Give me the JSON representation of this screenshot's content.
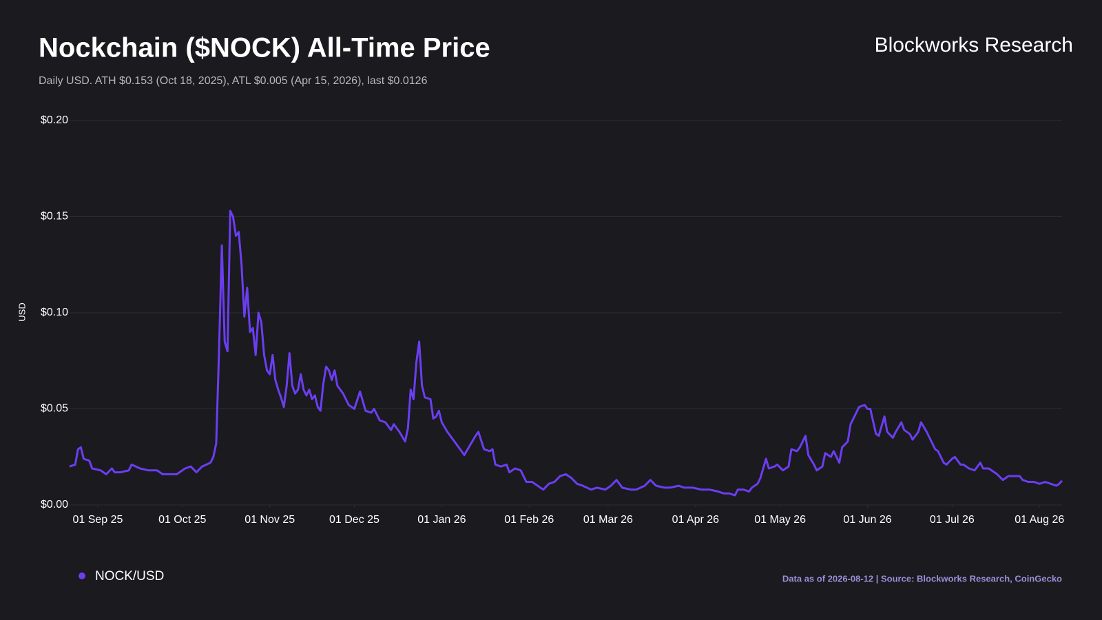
{
  "chart_data": {
    "type": "line",
    "title": "Nockchain ($NOCK) All-Time Price",
    "subtitle": "Daily USD. ATH $0.153 (Oct 18, 2025), ATL $0.005 (Apr 15, 2026), last $0.0126",
    "brand": "Blockworks Research",
    "y_label": "USD",
    "footer": "Data as of 2026-08-12 | Source: Blockworks Research, CoinGecko",
    "x": [
      "2025-08-22",
      "2025-08-24",
      "2025-08-25",
      "2025-08-26",
      "2025-08-27",
      "2025-08-29",
      "2025-08-30",
      "2025-09-02",
      "2025-09-04",
      "2025-09-06",
      "2025-09-07",
      "2025-09-09",
      "2025-09-12",
      "2025-09-13",
      "2025-09-16",
      "2025-09-19",
      "2025-09-22",
      "2025-09-24",
      "2025-09-27",
      "2025-09-29",
      "2025-10-02",
      "2025-10-04",
      "2025-10-06",
      "2025-10-08",
      "2025-10-11",
      "2025-10-12",
      "2025-10-13",
      "2025-10-14",
      "2025-10-15",
      "2025-10-16",
      "2025-10-17",
      "2025-10-18",
      "2025-10-19",
      "2025-10-20",
      "2025-10-21",
      "2025-10-22",
      "2025-10-23",
      "2025-10-24",
      "2025-10-25",
      "2025-10-26",
      "2025-10-27",
      "2025-10-28",
      "2025-10-29",
      "2025-10-30",
      "2025-10-31",
      "2025-11-01",
      "2025-11-02",
      "2025-11-03",
      "2025-11-04",
      "2025-11-05",
      "2025-11-06",
      "2025-11-07",
      "2025-11-08",
      "2025-11-09",
      "2025-11-10",
      "2025-11-11",
      "2025-11-12",
      "2025-11-13",
      "2025-11-14",
      "2025-11-15",
      "2025-11-16",
      "2025-11-17",
      "2025-11-18",
      "2025-11-19",
      "2025-11-20",
      "2025-11-21",
      "2025-11-22",
      "2025-11-23",
      "2025-11-24",
      "2025-11-25",
      "2025-11-27",
      "2025-11-29",
      "2025-12-01",
      "2025-12-03",
      "2025-12-05",
      "2025-12-07",
      "2025-12-08",
      "2025-12-10",
      "2025-12-12",
      "2025-12-14",
      "2025-12-15",
      "2025-12-17",
      "2025-12-19",
      "2025-12-20",
      "2025-12-21",
      "2025-12-22",
      "2025-12-23",
      "2025-12-24",
      "2025-12-25",
      "2025-12-26",
      "2025-12-28",
      "2025-12-29",
      "2025-12-30",
      "2025-12-31",
      "2026-01-01",
      "2026-01-03",
      "2026-01-05",
      "2026-01-07",
      "2026-01-09",
      "2026-01-11",
      "2026-01-13",
      "2026-01-14",
      "2026-01-16",
      "2026-01-18",
      "2026-01-19",
      "2026-01-20",
      "2026-01-22",
      "2026-01-24",
      "2026-01-25",
      "2026-01-27",
      "2026-01-29",
      "2026-01-31",
      "2026-02-02",
      "2026-02-04",
      "2026-02-06",
      "2026-02-08",
      "2026-02-10",
      "2026-02-12",
      "2026-02-14",
      "2026-02-16",
      "2026-02-18",
      "2026-02-20",
      "2026-02-23",
      "2026-02-25",
      "2026-02-28",
      "2026-03-02",
      "2026-03-04",
      "2026-03-06",
      "2026-03-09",
      "2026-03-11",
      "2026-03-14",
      "2026-03-16",
      "2026-03-18",
      "2026-03-21",
      "2026-03-23",
      "2026-03-26",
      "2026-03-28",
      "2026-03-31",
      "2026-04-03",
      "2026-04-06",
      "2026-04-09",
      "2026-04-11",
      "2026-04-13",
      "2026-04-15",
      "2026-04-16",
      "2026-04-18",
      "2026-04-20",
      "2026-04-21",
      "2026-04-23",
      "2026-04-24",
      "2026-04-26",
      "2026-04-27",
      "2026-04-29",
      "2026-04-30",
      "2026-05-02",
      "2026-05-04",
      "2026-05-05",
      "2026-05-07",
      "2026-05-08",
      "2026-05-10",
      "2026-05-11",
      "2026-05-13",
      "2026-05-14",
      "2026-05-16",
      "2026-05-17",
      "2026-05-19",
      "2026-05-20",
      "2026-05-22",
      "2026-05-23",
      "2026-05-25",
      "2026-05-26",
      "2026-05-28",
      "2026-05-29",
      "2026-05-31",
      "2026-06-01",
      "2026-06-02",
      "2026-06-04",
      "2026-06-05",
      "2026-06-07",
      "2026-06-08",
      "2026-06-10",
      "2026-06-11",
      "2026-06-13",
      "2026-06-14",
      "2026-06-16",
      "2026-06-17",
      "2026-06-19",
      "2026-06-20",
      "2026-06-22",
      "2026-06-23",
      "2026-06-25",
      "2026-06-26",
      "2026-06-28",
      "2026-06-29",
      "2026-07-01",
      "2026-07-02",
      "2026-07-04",
      "2026-07-05",
      "2026-07-07",
      "2026-07-09",
      "2026-07-11",
      "2026-07-12",
      "2026-07-14",
      "2026-07-16",
      "2026-07-17",
      "2026-07-19",
      "2026-07-21",
      "2026-07-23",
      "2026-07-25",
      "2026-07-26",
      "2026-07-28",
      "2026-07-30",
      "2026-08-01",
      "2026-08-03",
      "2026-08-05",
      "2026-08-07",
      "2026-08-08",
      "2026-08-09"
    ],
    "series": [
      {
        "name": "NOCK/USD",
        "color": "#6b3ef2",
        "values": [
          0.02,
          0.021,
          0.029,
          0.03,
          0.024,
          0.023,
          0.019,
          0.018,
          0.016,
          0.019,
          0.017,
          0.017,
          0.018,
          0.021,
          0.019,
          0.018,
          0.018,
          0.016,
          0.016,
          0.016,
          0.019,
          0.02,
          0.017,
          0.02,
          0.022,
          0.025,
          0.032,
          0.08,
          0.135,
          0.085,
          0.08,
          0.153,
          0.15,
          0.14,
          0.142,
          0.125,
          0.098,
          0.113,
          0.09,
          0.092,
          0.078,
          0.1,
          0.095,
          0.078,
          0.07,
          0.068,
          0.078,
          0.065,
          0.06,
          0.056,
          0.051,
          0.062,
          0.079,
          0.062,
          0.058,
          0.06,
          0.068,
          0.06,
          0.057,
          0.06,
          0.055,
          0.057,
          0.051,
          0.049,
          0.063,
          0.072,
          0.07,
          0.065,
          0.07,
          0.062,
          0.058,
          0.052,
          0.05,
          0.059,
          0.049,
          0.048,
          0.05,
          0.044,
          0.043,
          0.039,
          0.042,
          0.038,
          0.033,
          0.04,
          0.06,
          0.055,
          0.074,
          0.085,
          0.062,
          0.056,
          0.055,
          0.045,
          0.046,
          0.049,
          0.043,
          0.038,
          0.034,
          0.03,
          0.026,
          0.031,
          0.036,
          0.038,
          0.029,
          0.028,
          0.029,
          0.021,
          0.02,
          0.021,
          0.017,
          0.019,
          0.018,
          0.012,
          0.012,
          0.01,
          0.008,
          0.011,
          0.012,
          0.015,
          0.016,
          0.014,
          0.011,
          0.01,
          0.008,
          0.009,
          0.008,
          0.01,
          0.013,
          0.009,
          0.008,
          0.008,
          0.01,
          0.013,
          0.01,
          0.009,
          0.009,
          0.01,
          0.009,
          0.009,
          0.008,
          0.008,
          0.007,
          0.006,
          0.006,
          0.005,
          0.008,
          0.008,
          0.007,
          0.009,
          0.011,
          0.014,
          0.024,
          0.019,
          0.02,
          0.021,
          0.018,
          0.02,
          0.029,
          0.028,
          0.03,
          0.036,
          0.026,
          0.021,
          0.018,
          0.02,
          0.027,
          0.025,
          0.028,
          0.022,
          0.03,
          0.033,
          0.042,
          0.048,
          0.051,
          0.052,
          0.05,
          0.05,
          0.037,
          0.036,
          0.046,
          0.038,
          0.035,
          0.038,
          0.043,
          0.039,
          0.037,
          0.034,
          0.038,
          0.043,
          0.038,
          0.035,
          0.029,
          0.028,
          0.022,
          0.021,
          0.024,
          0.025,
          0.021,
          0.021,
          0.019,
          0.018,
          0.022,
          0.019,
          0.019,
          0.017,
          0.016,
          0.013,
          0.015,
          0.015,
          0.015,
          0.013,
          0.012,
          0.012,
          0.011,
          0.012,
          0.011,
          0.01,
          0.011,
          0.0126
        ]
      }
    ],
    "xlim": [
      "2025-08-22",
      "2026-08-09"
    ],
    "xticks": [
      {
        "value": "2025-09-01",
        "label": "01 Sep 25"
      },
      {
        "value": "2025-10-01",
        "label": "01 Oct 25"
      },
      {
        "value": "2025-11-01",
        "label": "01 Nov 25"
      },
      {
        "value": "2025-12-01",
        "label": "01 Dec 25"
      },
      {
        "value": "2026-01-01",
        "label": "01 Jan 26"
      },
      {
        "value": "2026-02-01",
        "label": "01 Feb 26"
      },
      {
        "value": "2026-03-01",
        "label": "01 Mar 26"
      },
      {
        "value": "2026-04-01",
        "label": "01 Apr 26"
      },
      {
        "value": "2026-05-01",
        "label": "01 May 26"
      },
      {
        "value": "2026-06-01",
        "label": "01 Jun 26"
      },
      {
        "value": "2026-07-01",
        "label": "01 Jul 26"
      },
      {
        "value": "2026-08-01",
        "label": "01 Aug 26"
      }
    ],
    "ylim": [
      0,
      0.2
    ],
    "yticks": [
      {
        "value": 0,
        "label": "$0.00"
      },
      {
        "value": 0.05,
        "label": "$0.05"
      },
      {
        "value": 0.1,
        "label": "$0.10"
      },
      {
        "value": 0.15,
        "label": "$0.15"
      },
      {
        "value": 0.2,
        "label": "$0.20"
      }
    ],
    "grid": true
  }
}
